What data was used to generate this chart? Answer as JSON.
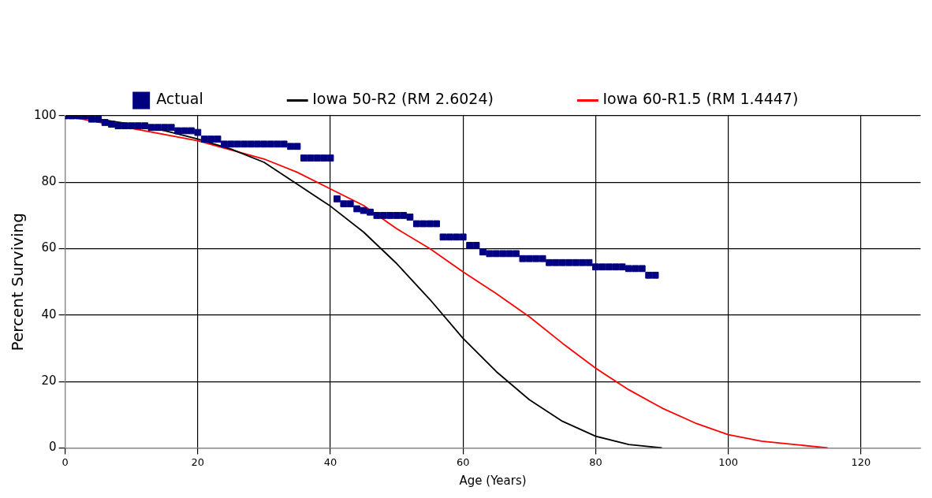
{
  "chart_data": {
    "type": "line",
    "xlabel": "Age (Years)",
    "ylabel": "Percent Surviving",
    "xlim": [
      0,
      129
    ],
    "xticks": [
      0,
      20,
      40,
      60,
      80,
      100,
      120
    ],
    "ylim": [
      0,
      100
    ],
    "yticks": [
      0,
      20,
      40,
      60,
      80,
      100
    ],
    "grid": true,
    "legend": "top",
    "series": [
      {
        "name": "Actual",
        "type": "scatter",
        "marker": "square",
        "color": "#000080",
        "x": [
          0,
          1,
          2,
          3,
          4,
          5,
          6,
          7,
          8,
          9,
          10,
          11,
          12,
          13,
          14,
          15,
          16,
          17,
          18,
          19,
          20,
          21,
          22,
          23,
          24,
          25,
          26,
          27,
          28,
          29,
          30,
          31,
          32,
          33,
          34,
          35,
          36,
          37,
          38,
          39,
          40,
          41,
          42,
          43,
          44,
          45,
          46,
          47,
          48,
          49,
          50,
          51,
          52,
          53,
          54,
          55,
          56,
          57,
          58,
          59,
          60,
          61,
          62,
          63,
          64,
          65,
          66,
          67,
          68,
          69,
          70,
          71,
          72,
          73,
          74,
          75,
          76,
          77,
          78,
          79,
          80,
          81,
          82,
          83,
          84,
          85,
          86,
          87,
          88,
          89
        ],
        "values": [
          100,
          100,
          100,
          100,
          99,
          99,
          98,
          97.5,
          97,
          97,
          97,
          97,
          97,
          96.5,
          96.5,
          96.5,
          96.5,
          95.5,
          95.5,
          95.5,
          95,
          93,
          93,
          93,
          91.5,
          91.5,
          91.5,
          91.5,
          91.5,
          91.5,
          91.5,
          91.5,
          91.5,
          91.5,
          90.8,
          90.8,
          87.3,
          87.3,
          87.3,
          87.3,
          87.3,
          75,
          73.5,
          73.5,
          72,
          71.5,
          71,
          70,
          70,
          70,
          70,
          70,
          69.5,
          67.5,
          67.5,
          67.5,
          67.5,
          63.5,
          63.5,
          63.5,
          63.5,
          61,
          61,
          59,
          58.5,
          58.5,
          58.5,
          58.5,
          58.5,
          57,
          57,
          57,
          57,
          55.8,
          55.8,
          55.8,
          55.8,
          55.8,
          55.8,
          55.8,
          54.5,
          54.5,
          54.5,
          54.5,
          54.5,
          54,
          54,
          54,
          52,
          52
        ]
      },
      {
        "name": "Iowa 50-R2 (RM 2.6024)",
        "type": "line",
        "marker": "none",
        "line_style": "solid",
        "color": "#000000",
        "x": [
          0,
          5,
          10,
          15,
          20,
          25,
          30,
          35,
          40,
          45,
          50,
          55,
          60,
          65,
          70,
          75,
          80,
          85,
          90
        ],
        "values": [
          100,
          99,
          97.5,
          95.5,
          93,
          90,
          86,
          79.4,
          72.8,
          65,
          55.5,
          44.7,
          33,
          23,
          14.5,
          8,
          3.5,
          1,
          0
        ]
      },
      {
        "name": "Iowa 60-R1.5 (RM 1.4447)",
        "type": "line",
        "marker": "none",
        "line_style": "solid",
        "color": "#ff0000",
        "x": [
          0,
          20,
          30,
          35,
          40,
          45,
          50,
          55,
          60,
          65,
          70,
          75,
          80,
          85,
          90,
          95,
          100,
          105,
          110,
          115
        ],
        "values": [
          100,
          92.5,
          87,
          83,
          78,
          73,
          66,
          60,
          53,
          46.5,
          39.5,
          31.5,
          24,
          17.5,
          12,
          7.5,
          4,
          2,
          1,
          0
        ]
      }
    ]
  }
}
